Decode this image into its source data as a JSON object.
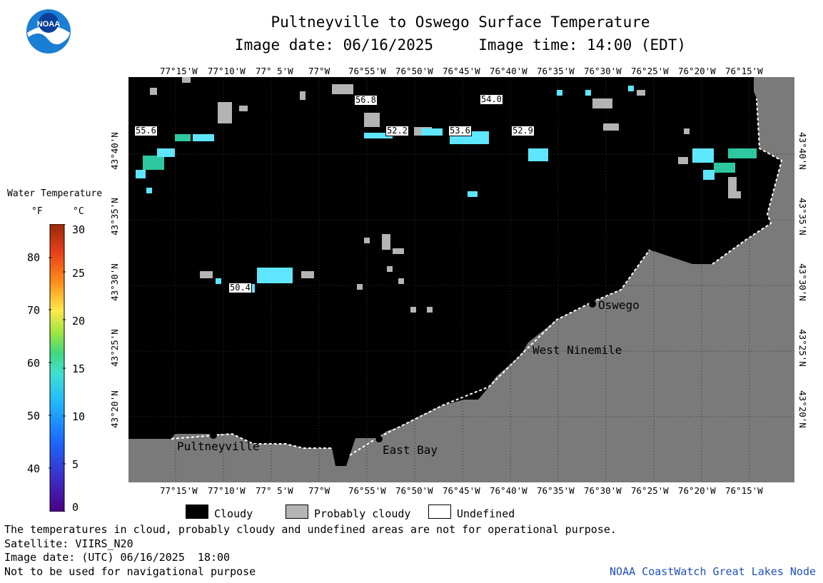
{
  "header": {
    "title": "Pultneyville to Oswego Surface Temperature",
    "subtitle": "Image date: 06/16/2025     Image time: 14:00 (EDT)"
  },
  "logo": {
    "text": "NOAA",
    "icon": "noaa-logo-icon"
  },
  "map": {
    "lon_ticks": [
      "77°15'W",
      "77°10'W",
      "77° 5'W",
      "77°W",
      "76°55'W",
      "76°50'W",
      "76°45'W",
      "76°40'W",
      "76°35'W",
      "76°30'W",
      "76°25'W",
      "76°20'W",
      "76°15'W"
    ],
    "lat_ticks": [
      "43°40'N",
      "43°35'N",
      "43°30'N",
      "43°25'N",
      "43°20'N"
    ],
    "places": [
      {
        "name": "Oswego"
      },
      {
        "name": "West Ninemile"
      },
      {
        "name": "Pultneyville"
      },
      {
        "name": "East Bay"
      }
    ],
    "temp_labels": [
      "56.8",
      "54.0",
      "55.6",
      "52.2",
      "53.6",
      "52.9",
      "50.4"
    ],
    "colors": {
      "cloudy": "#000000",
      "land": "#7a7a7a",
      "probably_cloudy": "#b4b4b4",
      "undefined": "#ffffff",
      "water_cyan": "#5fe6ff"
    }
  },
  "legend": {
    "title": "Water Temperature",
    "unit_f": "°F",
    "unit_c": "°C",
    "f_labels": [
      "80",
      "70",
      "60",
      "50",
      "40"
    ],
    "c_labels": [
      "30",
      "25",
      "20",
      "15",
      "10",
      "5",
      "0"
    ],
    "colors": [
      "#ffffff"
    ]
  },
  "key": {
    "items": [
      {
        "label": "Cloudy",
        "color": "#000000"
      },
      {
        "label": "Probably cloudy",
        "color": "#b4b4b4"
      },
      {
        "label": "Undefined",
        "color": "#ffffff"
      }
    ]
  },
  "footer": {
    "line1": "The temperatures in cloud, probably cloudy and undefined areas are not for operational purpose.",
    "line2": "Satellite: VIIRS_N20",
    "line3": "Image date: (UTC) 06/16/2025  18:00",
    "line4": "Not to be used for navigational purpose",
    "credit": "NOAA CoastWatch Great Lakes Node"
  }
}
